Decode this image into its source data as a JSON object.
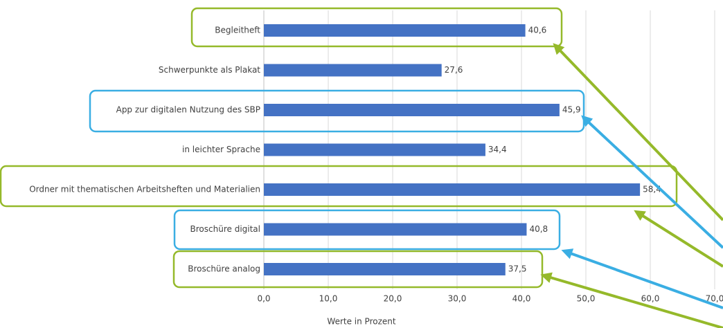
{
  "chart_data": {
    "type": "bar",
    "orientation": "horizontal",
    "categories": [
      "Begleitheft",
      "Schwerpunkte als Plakat",
      "App zur digitalen Nutzung des SBP",
      "in leichter Sprache",
      "Ordner mit thematischen Arbeitsheften und Materialien",
      "Broschüre digital",
      "Broschüre analog"
    ],
    "values": [
      40.6,
      27.6,
      45.9,
      34.4,
      58.4,
      40.8,
      37.5
    ],
    "value_labels": [
      "40,6",
      "27,6",
      "45,9",
      "34,4",
      "58,4",
      "40,8",
      "37,5"
    ],
    "color": "#4472c4",
    "xlabel": "Werte in Prozent",
    "xlim": [
      0,
      70
    ],
    "xticks": [
      {
        "value": 0,
        "label": "0,0"
      },
      {
        "value": 10,
        "label": "10,0"
      },
      {
        "value": 20,
        "label": "20,0"
      },
      {
        "value": 30,
        "label": "30,0"
      },
      {
        "value": 40,
        "label": "40,0"
      },
      {
        "value": 50,
        "label": "50,0"
      },
      {
        "value": 60,
        "label": "60,0"
      },
      {
        "value": 70,
        "label": "70,0"
      }
    ],
    "grid": true
  }
}
